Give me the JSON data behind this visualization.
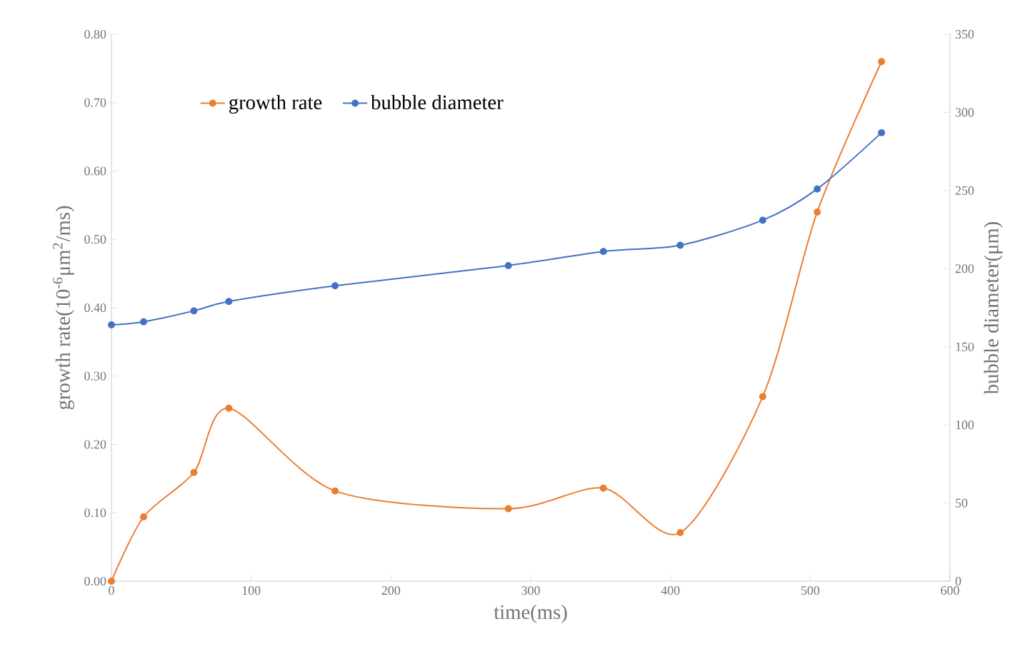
{
  "chart_data": {
    "type": "line",
    "xlabel": "time(ms)",
    "ylabel": "growth rate(10$^{-6}$μm$^{2}$/ms)",
    "y2label": "bubble diameter(μm)",
    "series": [
      {
        "name": "growth rate",
        "color": "#ed7d31",
        "x": [
          0,
          23,
          59,
          84,
          160,
          284,
          352,
          407,
          466,
          505,
          551
        ],
        "values": [
          0.0,
          0.094,
          0.159,
          0.253,
          0.132,
          0.106,
          0.136,
          0.071,
          0.27,
          0.54,
          0.76
        ]
      },
      {
        "name": "bubble diameter",
        "color": "#4472c4",
        "axis": "y2",
        "x": [
          0,
          23,
          59,
          84,
          160,
          284,
          352,
          407,
          466,
          505,
          551
        ],
        "values": [
          164,
          166,
          173,
          179,
          189,
          202,
          211,
          215,
          231,
          251,
          287
        ]
      }
    ],
    "xlim": [
      0,
      600
    ],
    "xticks": [
      0,
      100,
      200,
      300,
      400,
      500,
      600
    ],
    "ylim": [
      0,
      0.8
    ],
    "yticks": [
      {
        "value": 0,
        "label": "0.00"
      },
      {
        "value": 0.1,
        "label": "0.10"
      },
      {
        "value": 0.2,
        "label": "0.20"
      },
      {
        "value": 0.3,
        "label": "0.30"
      },
      {
        "value": 0.4,
        "label": "0.40"
      },
      {
        "value": 0.5,
        "label": "0.50"
      },
      {
        "value": 0.6,
        "label": "0.60"
      },
      {
        "value": 0.7,
        "label": "0.70"
      },
      {
        "value": 0.8,
        "label": "0.80"
      }
    ],
    "y2lim": [
      0,
      350
    ],
    "y2ticks": [
      0,
      50,
      100,
      150,
      200,
      250,
      300,
      350
    ],
    "marker": "circle",
    "line_style": "solid",
    "legend": "top left",
    "grid": false
  }
}
